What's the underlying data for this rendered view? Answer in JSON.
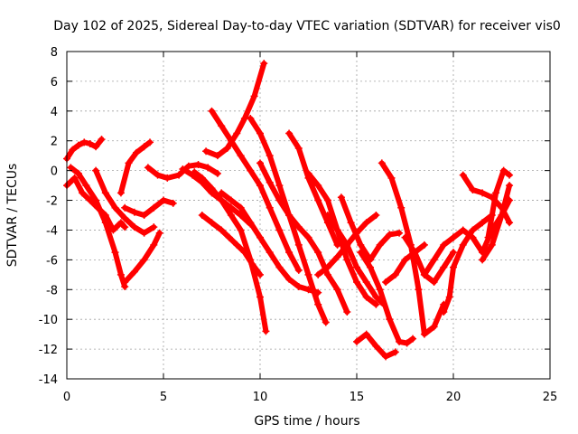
{
  "chart_data": {
    "type": "scatter",
    "title": "Day 102 of 2025, Sidereal Day-to-day VTEC variation (SDTVAR) for receiver vis0",
    "xlabel": "GPS time / hours",
    "ylabel": "SDTVAR / TECUs",
    "xlim": [
      0,
      25
    ],
    "ylim": [
      -14,
      8
    ],
    "xticks": [
      "0",
      "5",
      "10",
      "15",
      "20",
      "25"
    ],
    "yticks": [
      "8",
      "6",
      "4",
      "2",
      "0",
      "-2",
      "-4",
      "-6",
      "-8",
      "-10",
      "-12",
      "-14"
    ],
    "grid": true,
    "color": "#ff0000",
    "marker": "plus",
    "series": [
      {
        "x": [
          0.0,
          0.3,
          0.6,
          0.9,
          1.2,
          1.5,
          1.8
        ],
        "y": [
          0.8,
          1.4,
          1.7,
          1.9,
          1.8,
          1.6,
          2.1
        ]
      },
      {
        "x": [
          0.0,
          0.4,
          0.8,
          1.2,
          1.6,
          2.0,
          2.4,
          2.8,
          3.0
        ],
        "y": [
          -1.0,
          -0.5,
          -1.5,
          -2.0,
          -2.5,
          -3.0,
          -4.0,
          -3.5,
          -3.8
        ]
      },
      {
        "x": [
          0.2,
          0.6,
          1.0,
          1.5,
          2.0,
          2.5,
          2.8,
          3.0
        ],
        "y": [
          0.2,
          -0.2,
          -1.0,
          -2.0,
          -3.5,
          -5.5,
          -7.0,
          -7.8
        ]
      },
      {
        "x": [
          3.0,
          3.5,
          4.0,
          4.5,
          4.8
        ],
        "y": [
          -7.5,
          -6.8,
          -6.0,
          -5.0,
          -4.2
        ]
      },
      {
        "x": [
          1.5,
          2.0,
          2.5,
          3.0,
          3.5,
          4.0,
          4.5
        ],
        "y": [
          0.0,
          -1.5,
          -2.5,
          -3.2,
          -3.8,
          -4.2,
          -3.8
        ]
      },
      {
        "x": [
          2.8,
          3.2,
          3.6,
          4.0,
          4.3
        ],
        "y": [
          -1.5,
          0.5,
          1.2,
          1.6,
          1.9
        ]
      },
      {
        "x": [
          3.0,
          3.5,
          4.0,
          4.5,
          5.0,
          5.5
        ],
        "y": [
          -2.5,
          -2.8,
          -3.0,
          -2.5,
          -2.0,
          -2.2
        ]
      },
      {
        "x": [
          4.2,
          4.7,
          5.2,
          5.8,
          6.3,
          6.8,
          7.3,
          7.8
        ],
        "y": [
          0.2,
          -0.3,
          -0.5,
          -0.3,
          0.3,
          0.4,
          0.2,
          -0.2
        ]
      },
      {
        "x": [
          6.0,
          6.5,
          7.0,
          7.5,
          8.0,
          8.5,
          9.0,
          9.5
        ],
        "y": [
          0.1,
          -0.3,
          -0.8,
          -1.5,
          -2.0,
          -2.5,
          -3.0,
          -3.6
        ]
      },
      {
        "x": [
          6.6,
          7.0,
          7.5,
          8.0,
          8.5,
          9.0,
          9.5,
          10.0,
          10.3
        ],
        "y": [
          -0.1,
          -0.5,
          -1.2,
          -2.0,
          -3.0,
          -4.0,
          -6.0,
          -8.5,
          -10.8
        ]
      },
      {
        "x": [
          7.0,
          7.5,
          8.0,
          8.4,
          8.8,
          9.2,
          9.6,
          10.0
        ],
        "y": [
          -3.0,
          -3.5,
          -4.0,
          -4.5,
          -5.0,
          -5.5,
          -6.3,
          -7.0
        ]
      },
      {
        "x": [
          7.2,
          7.8,
          8.3,
          8.8,
          9.2,
          9.7,
          10.2
        ],
        "y": [
          1.3,
          1.0,
          1.5,
          2.5,
          3.5,
          5.0,
          7.2
        ]
      },
      {
        "x": [
          7.5,
          8.0,
          8.5,
          9.0,
          9.5,
          10.0,
          10.5,
          11.0,
          11.5,
          12.0
        ],
        "y": [
          4.0,
          3.0,
          2.0,
          1.0,
          0.0,
          -1.0,
          -2.5,
          -4.0,
          -5.5,
          -6.7
        ]
      },
      {
        "x": [
          8.0,
          8.5,
          9.0,
          9.5,
          10.0,
          10.5,
          11.0,
          11.5,
          12.0,
          12.5,
          13.0
        ],
        "y": [
          -1.5,
          -2.0,
          -2.5,
          -3.5,
          -4.5,
          -5.5,
          -6.5,
          -7.3,
          -7.8,
          -8.0,
          -8.2
        ]
      },
      {
        "x": [
          9.5,
          10.0,
          10.5,
          11.0,
          11.5,
          12.0,
          12.5,
          13.0,
          13.4
        ],
        "y": [
          3.5,
          2.5,
          1.0,
          -1.0,
          -3.0,
          -5.0,
          -7.0,
          -9.0,
          -10.2
        ]
      },
      {
        "x": [
          10.0,
          10.5,
          11.0,
          11.5,
          12.0,
          12.5,
          13.0,
          13.5,
          14.0,
          14.5
        ],
        "y": [
          0.5,
          -0.8,
          -2.0,
          -3.0,
          -3.8,
          -4.5,
          -5.5,
          -7.0,
          -8.0,
          -9.5
        ]
      },
      {
        "x": [
          11.5,
          12.0,
          12.5,
          13.0,
          13.5,
          14.0
        ],
        "y": [
          2.5,
          1.5,
          -0.5,
          -2.0,
          -3.5,
          -5.0
        ]
      },
      {
        "x": [
          12.5,
          13.0,
          13.5,
          14.0,
          14.5,
          15.0,
          15.5,
          16.0
        ],
        "y": [
          -0.2,
          -1.0,
          -2.0,
          -4.0,
          -6.0,
          -7.5,
          -8.5,
          -9.0
        ]
      },
      {
        "x": [
          13.5,
          14.0,
          14.5,
          15.0,
          15.5,
          16.0,
          16.4
        ],
        "y": [
          -3.0,
          -4.0,
          -5.0,
          -6.5,
          -7.5,
          -8.5,
          -9.0
        ]
      },
      {
        "x": [
          13.0,
          13.5,
          14.0,
          14.5,
          15.0,
          15.5,
          16.0
        ],
        "y": [
          -7.0,
          -6.5,
          -5.8,
          -5.0,
          -4.2,
          -3.5,
          -3.0
        ]
      },
      {
        "x": [
          14.2,
          14.7,
          15.2,
          15.7,
          16.2,
          16.7,
          17.2
        ],
        "y": [
          -1.8,
          -3.5,
          -5.0,
          -6.0,
          -5.0,
          -4.3,
          -4.2
        ]
      },
      {
        "x": [
          15.0,
          15.5,
          16.0,
          16.5,
          17.0
        ],
        "y": [
          -11.5,
          -11.0,
          -11.8,
          -12.5,
          -12.2
        ]
      },
      {
        "x": [
          15.2,
          15.7,
          16.2,
          16.7,
          17.2,
          17.6,
          17.9
        ],
        "y": [
          -5.5,
          -6.5,
          -8.0,
          -10.0,
          -11.5,
          -11.6,
          -11.3
        ]
      },
      {
        "x": [
          16.5,
          17.0,
          17.5,
          18.0,
          18.5
        ],
        "y": [
          -7.5,
          -7.0,
          -6.0,
          -5.5,
          -5.0
        ]
      },
      {
        "x": [
          16.3,
          16.8,
          17.3,
          17.8,
          18.2,
          18.5,
          19.0,
          19.5
        ],
        "y": [
          0.5,
          -0.5,
          -2.5,
          -5.0,
          -8.0,
          -11.0,
          -10.5,
          -9.0
        ]
      },
      {
        "x": [
          17.5,
          18.0,
          18.5,
          19.0,
          19.5,
          20.0
        ],
        "y": [
          -4.5,
          -5.5,
          -7.0,
          -7.5,
          -6.5,
          -5.5
        ]
      },
      {
        "x": [
          19.5,
          19.8,
          20.0,
          20.5,
          21.0,
          21.5,
          22.0
        ],
        "y": [
          -9.5,
          -8.5,
          -6.5,
          -5.0,
          -4.0,
          -3.5,
          -3.0
        ]
      },
      {
        "x": [
          18.5,
          19.0,
          19.5,
          20.0
        ],
        "y": [
          -7.0,
          -6.0,
          -5.0,
          -4.5
        ]
      },
      {
        "x": [
          20.0,
          20.5,
          21.0,
          21.5,
          22.0,
          22.5,
          22.9
        ],
        "y": [
          -4.5,
          -4.0,
          -4.5,
          -5.5,
          -4.0,
          -3.0,
          -2.0
        ]
      },
      {
        "x": [
          20.5,
          21.0,
          21.5,
          22.0,
          22.5,
          22.9
        ],
        "y": [
          -0.3,
          -1.3,
          -1.5,
          -1.8,
          -2.5,
          -3.5
        ]
      },
      {
        "x": [
          21.5,
          22.0,
          22.5,
          22.9
        ],
        "y": [
          -6.0,
          -5.0,
          -3.0,
          -1.0
        ]
      },
      {
        "x": [
          21.8,
          22.2,
          22.6,
          22.9
        ],
        "y": [
          -4.5,
          -1.5,
          0.0,
          -0.3
        ]
      }
    ]
  }
}
